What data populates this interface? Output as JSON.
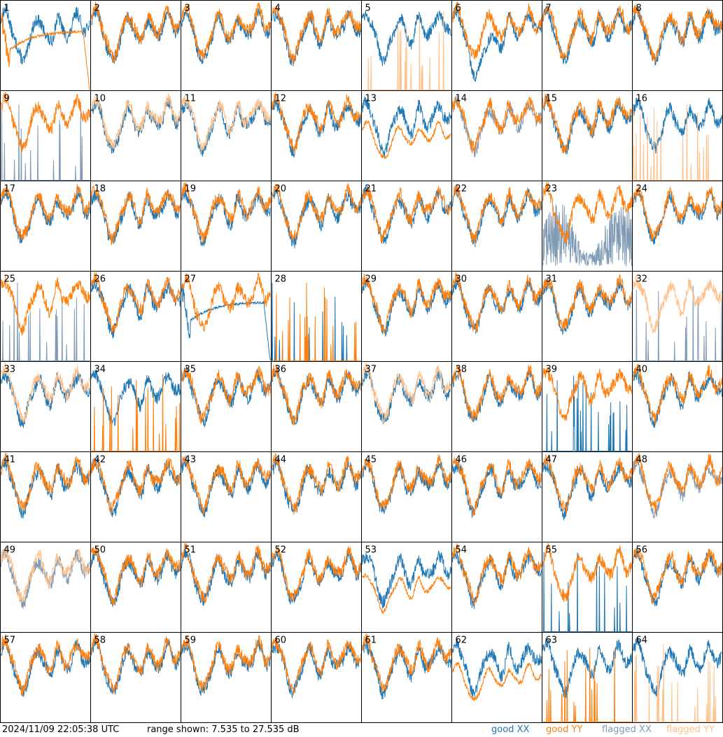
{
  "chart_data": {
    "type": "line",
    "layout": "8x8 small-multiples grid, one panel per input",
    "units": "dB",
    "ylim": [
      7.535,
      27.535
    ],
    "colors": {
      "good_xx": "#1f77b4",
      "good_yy": "#ff7f0e",
      "flagged_xx": "#7f9ab5",
      "flagged_yy": "#ffc08a"
    },
    "panels": [
      {
        "id": "1",
        "xx": "good",
        "yy": "good",
        "yy_mode": "anomalous_decay"
      },
      {
        "id": "2",
        "xx": "good",
        "yy": "good"
      },
      {
        "id": "3",
        "xx": "good",
        "yy": "good"
      },
      {
        "id": "4",
        "xx": "good",
        "yy": "good"
      },
      {
        "id": "5",
        "xx": "good",
        "yy": "flagged",
        "yy_mode": "spikes"
      },
      {
        "id": "6",
        "xx": "good",
        "yy": "good",
        "xx_mode": "dip"
      },
      {
        "id": "7",
        "xx": "good",
        "yy": "good"
      },
      {
        "id": "8",
        "xx": "good",
        "yy": "good"
      },
      {
        "id": "9",
        "xx": "flagged",
        "yy": "good",
        "xx_mode": "spikes"
      },
      {
        "id": "10",
        "xx": "good",
        "yy": "flagged"
      },
      {
        "id": "11",
        "xx": "good",
        "yy": "flagged"
      },
      {
        "id": "12",
        "xx": "good",
        "yy": "good"
      },
      {
        "id": "13",
        "xx": "good",
        "yy": "good",
        "yy_mode": "low"
      },
      {
        "id": "14",
        "xx": "flagged",
        "yy": "good"
      },
      {
        "id": "15",
        "xx": "good",
        "yy": "good"
      },
      {
        "id": "16",
        "xx": "good",
        "yy": "flagged",
        "yy_mode": "spikes"
      },
      {
        "id": "17",
        "xx": "good",
        "yy": "good"
      },
      {
        "id": "18",
        "xx": "good",
        "yy": "good"
      },
      {
        "id": "19",
        "xx": "good",
        "yy": "good"
      },
      {
        "id": "20",
        "xx": "good",
        "yy": "good"
      },
      {
        "id": "21",
        "xx": "good",
        "yy": "good"
      },
      {
        "id": "22",
        "xx": "good",
        "yy": "good"
      },
      {
        "id": "23",
        "xx": "flagged",
        "yy": "good",
        "xx_mode": "noisy_low"
      },
      {
        "id": "24",
        "xx": "good",
        "yy": "good"
      },
      {
        "id": "25",
        "xx": "flagged",
        "yy": "good",
        "xx_mode": "spikes"
      },
      {
        "id": "26",
        "xx": "good",
        "yy": "good"
      },
      {
        "id": "27",
        "xx": "good",
        "yy": "good",
        "xx_mode": "anomalous_decay"
      },
      {
        "id": "28",
        "xx": "good",
        "yy": "good",
        "xx_mode": "spikes",
        "yy_mode": "spikes"
      },
      {
        "id": "29",
        "xx": "good",
        "yy": "good"
      },
      {
        "id": "30",
        "xx": "good",
        "yy": "good"
      },
      {
        "id": "31",
        "xx": "good",
        "yy": "good"
      },
      {
        "id": "32",
        "xx": "flagged",
        "yy": "flagged",
        "xx_mode": "spikes"
      },
      {
        "id": "33",
        "xx": "good",
        "yy": "flagged"
      },
      {
        "id": "34",
        "xx": "good",
        "yy": "good",
        "yy_mode": "spikes"
      },
      {
        "id": "35",
        "xx": "good",
        "yy": "good"
      },
      {
        "id": "36",
        "xx": "good",
        "yy": "good"
      },
      {
        "id": "37",
        "xx": "good",
        "yy": "flagged"
      },
      {
        "id": "38",
        "xx": "good",
        "yy": "good"
      },
      {
        "id": "39",
        "xx": "good",
        "yy": "good",
        "xx_mode": "spikes"
      },
      {
        "id": "40",
        "xx": "good",
        "yy": "good"
      },
      {
        "id": "41",
        "xx": "good",
        "yy": "good"
      },
      {
        "id": "42",
        "xx": "good",
        "yy": "good"
      },
      {
        "id": "43",
        "xx": "good",
        "yy": "good"
      },
      {
        "id": "44",
        "xx": "good",
        "yy": "good"
      },
      {
        "id": "45",
        "xx": "good",
        "yy": "good"
      },
      {
        "id": "46",
        "xx": "good",
        "yy": "good"
      },
      {
        "id": "47",
        "xx": "good",
        "yy": "good"
      },
      {
        "id": "48",
        "xx": "flagged",
        "yy": "good"
      },
      {
        "id": "49",
        "xx": "flagged",
        "yy": "flagged"
      },
      {
        "id": "50",
        "xx": "good",
        "yy": "good"
      },
      {
        "id": "51",
        "xx": "good",
        "yy": "good"
      },
      {
        "id": "52",
        "xx": "good",
        "yy": "good"
      },
      {
        "id": "53",
        "xx": "good",
        "yy": "good",
        "yy_mode": "low"
      },
      {
        "id": "54",
        "xx": "good",
        "yy": "good"
      },
      {
        "id": "55",
        "xx": "good",
        "yy": "good",
        "xx_mode": "spikes"
      },
      {
        "id": "56",
        "xx": "good",
        "yy": "good"
      },
      {
        "id": "57",
        "xx": "good",
        "yy": "good"
      },
      {
        "id": "58",
        "xx": "good",
        "yy": "good"
      },
      {
        "id": "59",
        "xx": "good",
        "yy": "good"
      },
      {
        "id": "60",
        "xx": "good",
        "yy": "good"
      },
      {
        "id": "61",
        "xx": "good",
        "yy": "good"
      },
      {
        "id": "62",
        "xx": "good",
        "yy": "good",
        "yy_mode": "low"
      },
      {
        "id": "63",
        "xx": "good",
        "yy": "good",
        "yy_mode": "spikes"
      },
      {
        "id": "64",
        "xx": "good",
        "yy": "flagged",
        "yy_mode": "spikes"
      }
    ]
  },
  "footer": {
    "timestamp": "2024/11/09 22:05:38 UTC",
    "range_text": "range shown: 7.535 to 27.535 dB",
    "legend": {
      "good_xx": "good XX",
      "good_yy": "good YY",
      "flagged_xx": "flagged XX",
      "flagged_yy": "flagged YY"
    }
  }
}
